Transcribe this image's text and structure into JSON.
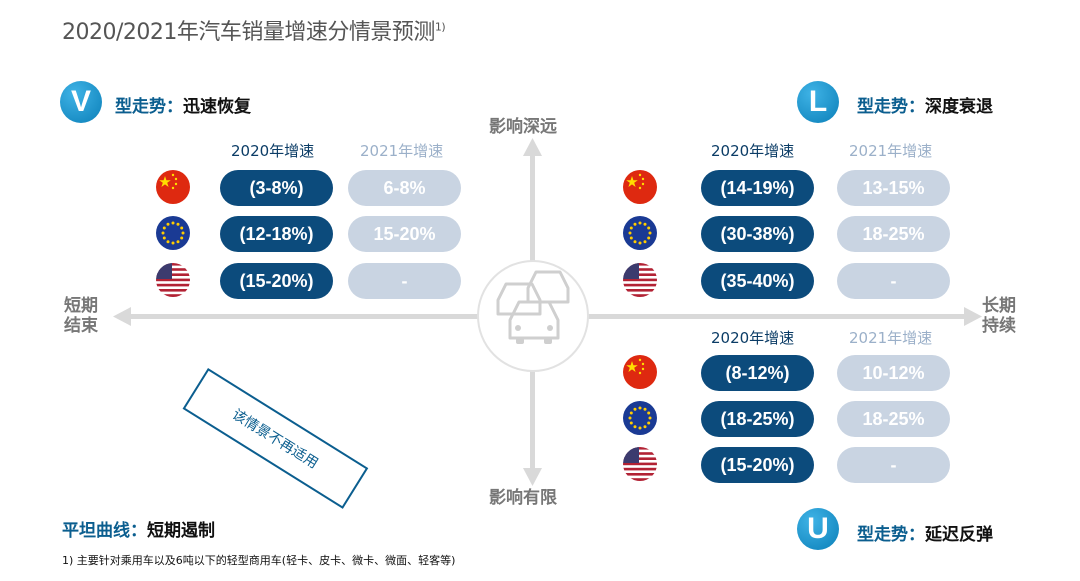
{
  "title": "2020/2021年汽车销量增速分情景预测",
  "title_sup": "1)",
  "axes": {
    "top": "影响深远",
    "bottom": "影响有限",
    "left_line1": "短期",
    "left_line2": "结束",
    "right_line1": "长期",
    "right_line2": "持续"
  },
  "col_headers": {
    "y2020": "2020年增速",
    "y2021": "2021年增速"
  },
  "quadrants": {
    "v": {
      "letter": "V",
      "type": "型走势",
      "sep": "：",
      "desc": "迅速恢复",
      "rows": [
        {
          "a": "(3-8%)",
          "b": "6-8%"
        },
        {
          "a": "(12-18%)",
          "b": "15-20%"
        },
        {
          "a": "(15-20%)",
          "b": "-"
        }
      ]
    },
    "l": {
      "letter": "L",
      "type": "型走势",
      "sep": "：",
      "desc": "深度衰退",
      "rows": [
        {
          "a": "(14-19%)",
          "b": "13-15%"
        },
        {
          "a": "(30-38%)",
          "b": "18-25%"
        },
        {
          "a": "(35-40%)",
          "b": "-"
        }
      ]
    },
    "u": {
      "letter": "U",
      "type": "型走势",
      "sep": "：",
      "desc": "延迟反弹",
      "rows": [
        {
          "a": "(8-12%)",
          "b": "10-12%"
        },
        {
          "a": "(18-25%)",
          "b": "18-25%"
        },
        {
          "a": "(15-20%)",
          "b": "-"
        }
      ]
    },
    "flat": {
      "type": "平坦曲线",
      "sep": "：",
      "desc": "短期遏制",
      "note": "该情景不再适用"
    }
  },
  "regions": [
    "china-flag-icon",
    "eu-flag-icon",
    "us-flag-icon"
  ],
  "center_icon": "cars-icon",
  "colors": {
    "dark_pill": "#0c4b7c",
    "light_pill": "#c9d4e2",
    "badge": "#0b7fb8",
    "axis": "#d8d8d8"
  },
  "footnote": "1) 主要针对乘用车以及6吨以下的轻型商用车(轻卡、皮卡、微卡、微面、轻客等)"
}
